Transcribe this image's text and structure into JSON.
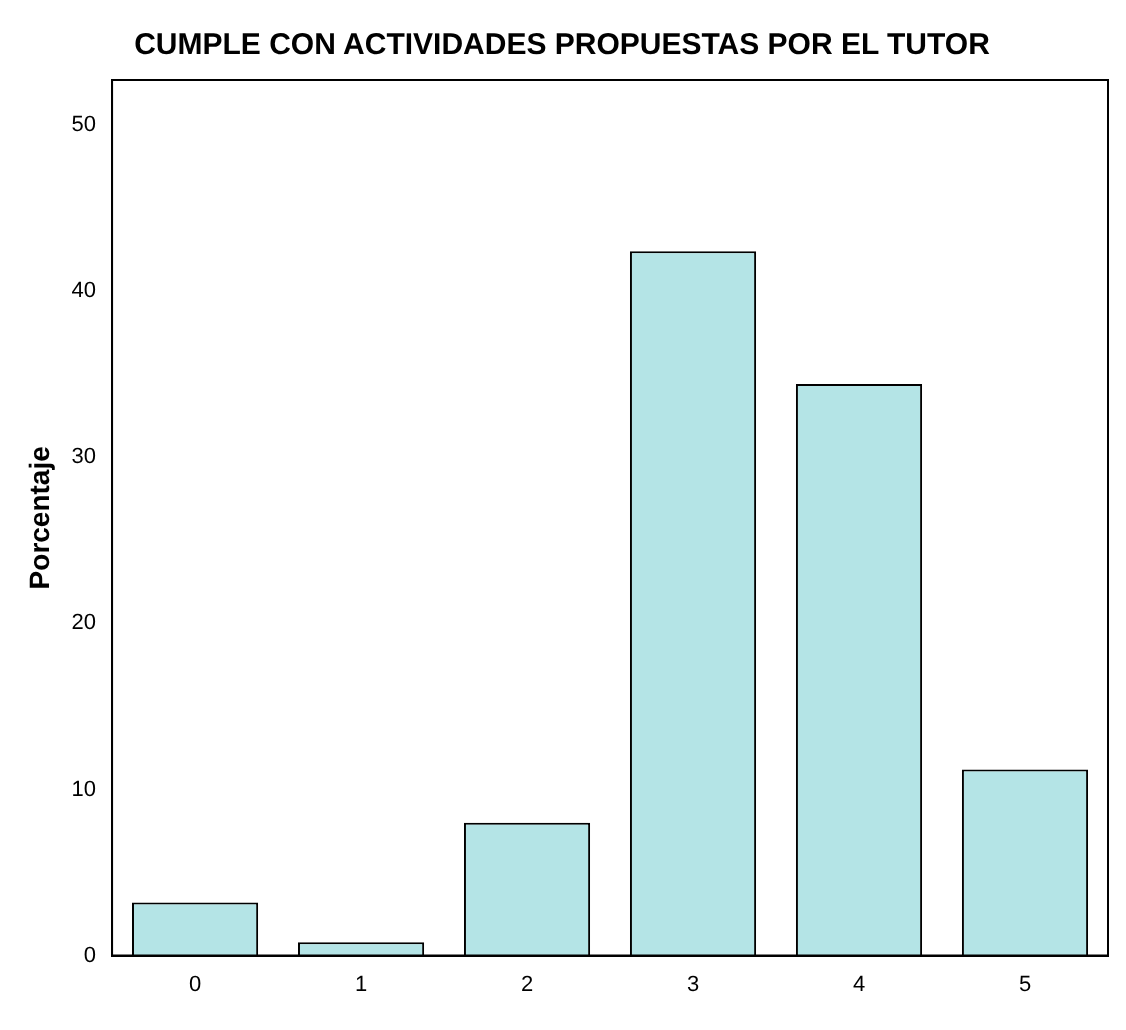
{
  "chart_data": {
    "type": "bar",
    "title": "CUMPLE CON ACTIVIDADES PROPUESTAS POR EL TUTOR",
    "ylabel": "Porcentaje",
    "categories": [
      "0",
      "1",
      "2",
      "3",
      "4",
      "5"
    ],
    "values": [
      3.2,
      0.8,
      8.0,
      42.4,
      34.4,
      11.2
    ],
    "color": "#b4e4e6",
    "ylim": [
      0,
      52.7
    ],
    "yticks": [
      0,
      10,
      20,
      30,
      40,
      50
    ],
    "grid": false,
    "legend": false
  }
}
